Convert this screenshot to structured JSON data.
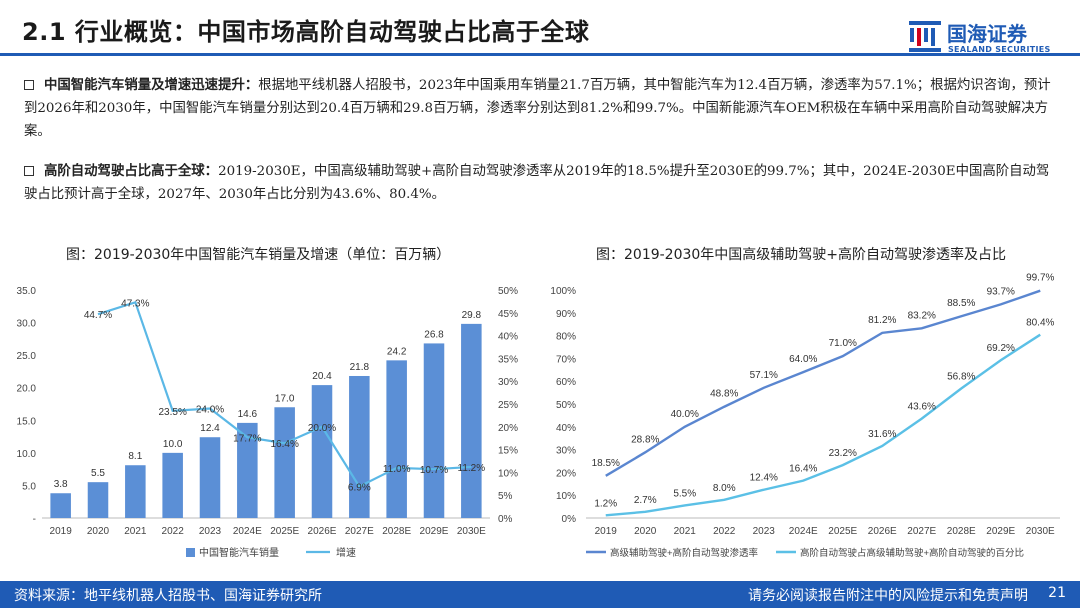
{
  "header": {
    "title": "2.1 行业概览：中国市场高阶自动驾驶占比高于全球",
    "logo_cn": "国海证券",
    "logo_en": "SEALAND SECURITIES",
    "accent": "#1f5bb5"
  },
  "paragraphs": [
    {
      "lead": "中国智能汽车销量及增速迅速提升：",
      "body": "根据地平线机器人招股书，2023年中国乘用车销量21.7百万辆，其中智能汽车为12.4百万辆，渗透率为57.1%；根据灼识咨询，预计到2026年和2030年，中国智能汽车销量分别达到20.4百万辆和29.8百万辆，渗透率分别达到81.2%和99.7%。中国新能源汽车OEM积极在车辆中采用高阶自动驾驶解决方案。"
    },
    {
      "lead": "高阶自动驾驶占比高于全球：",
      "body": "2019-2030E，中国高级辅助驾驶+高阶自动驾驶渗透率从2019年的18.5%提升至2030E的99.7%；其中，2024E-2030E中国高阶自动驾驶占比预计高于全球，2027年、2030年占比分别为43.6%、80.4%。"
    }
  ],
  "chart_data": [
    {
      "type": "bar+line",
      "title": "图：2019-2030年中国智能汽车销量及增速（单位：百万辆）",
      "categories": [
        "2019",
        "2020",
        "2021",
        "2022",
        "2023",
        "2024E",
        "2025E",
        "2026E",
        "2027E",
        "2028E",
        "2029E",
        "2030E"
      ],
      "bar_series": {
        "name": "中国智能汽车销量",
        "values": [
          3.8,
          5.5,
          8.1,
          10.0,
          12.4,
          14.6,
          17.0,
          20.4,
          21.8,
          24.2,
          26.8,
          29.8
        ],
        "labels": [
          "3.8",
          "5.5",
          "8.1",
          "10.0",
          "12.4",
          "14.6",
          "17.0",
          "20.4",
          "21.8",
          "24.2",
          "26.8",
          "29.8"
        ],
        "color": "#5b8fd6"
      },
      "line_series": {
        "name": "增速",
        "values": [
          null,
          44.7,
          47.3,
          23.5,
          24.0,
          17.7,
          16.4,
          20.0,
          6.9,
          11.0,
          10.7,
          11.2
        ],
        "labels": [
          null,
          "44.7%",
          "47.3%",
          "23.5%",
          "24.0%",
          "17.7%",
          "16.4%",
          "20.0%",
          "6.9%",
          "11.0%",
          "10.7%",
          "11.2%"
        ],
        "color": "#5bb8e6"
      },
      "y_left": {
        "min": 0,
        "max": 35,
        "ticks": [
          "-",
          "5.0",
          "10.0",
          "15.0",
          "20.0",
          "25.0",
          "30.0",
          "35.0"
        ]
      },
      "y_right": {
        "min": 0,
        "max": 50,
        "ticks": [
          "0%",
          "5%",
          "10%",
          "15%",
          "20%",
          "25%",
          "30%",
          "35%",
          "40%",
          "45%",
          "50%"
        ]
      },
      "legend": "bottom"
    },
    {
      "type": "line",
      "title": "图：2019-2030年中国高级辅助驾驶+高阶自动驾驶渗透率及占比",
      "categories": [
        "2019",
        "2020",
        "2021",
        "2022",
        "2023",
        "2024E",
        "2025E",
        "2026E",
        "2027E",
        "2028E",
        "2029E",
        "2030E"
      ],
      "series": [
        {
          "name": "高级辅助驾驶+高阶自动驾驶渗透率",
          "values": [
            18.5,
            28.8,
            40.0,
            48.8,
            57.1,
            64.0,
            71.0,
            81.2,
            83.2,
            88.5,
            93.7,
            99.7
          ],
          "labels": [
            "18.5%",
            "28.8%",
            "40.0%",
            "48.8%",
            "57.1%",
            "64.0%",
            "71.0%",
            "81.2%",
            "83.2%",
            "88.5%",
            "93.7%",
            "99.7%"
          ],
          "color": "#5a86d0"
        },
        {
          "name": "高阶自动驾驶占高级辅助驾驶+高阶自动驾驶的百分比",
          "values": [
            1.2,
            2.7,
            5.5,
            8.0,
            12.4,
            16.4,
            23.2,
            31.6,
            43.6,
            56.8,
            69.2,
            80.4
          ],
          "labels": [
            "1.2%",
            "2.7%",
            "5.5%",
            "8.0%",
            "12.4%",
            "16.4%",
            "23.2%",
            "31.6%",
            "43.6%",
            "56.8%",
            "69.2%",
            "80.4%"
          ],
          "color": "#5bc0e6"
        }
      ],
      "y_axis": {
        "min": 0,
        "max": 100,
        "ticks": [
          "0%",
          "10%",
          "20%",
          "30%",
          "40%",
          "50%",
          "60%",
          "70%",
          "80%",
          "90%",
          "100%"
        ]
      },
      "legend": "bottom"
    }
  ],
  "footer": {
    "source": "资料来源：地平线机器人招股书、国海证券研究所",
    "disclaimer": "请务必阅读报告附注中的风险提示和免责声明",
    "page": "21"
  }
}
